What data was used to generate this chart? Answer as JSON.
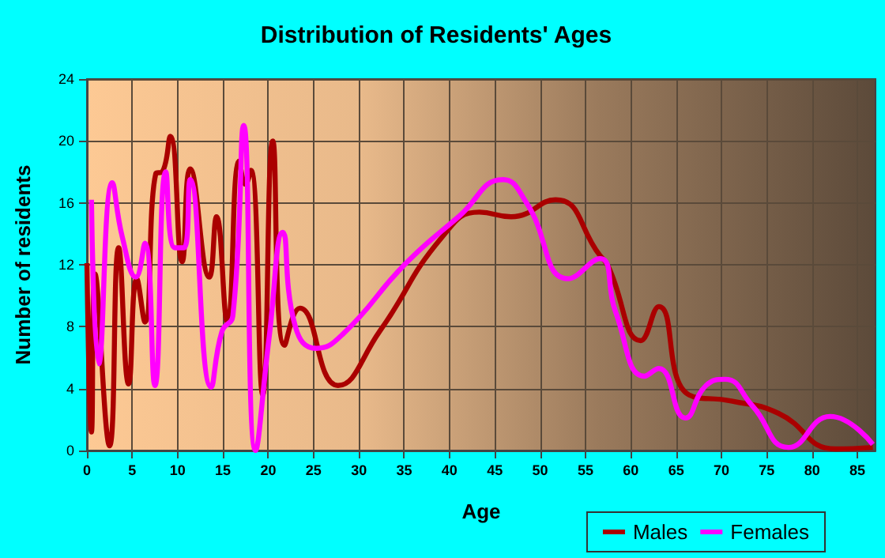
{
  "chart_data": {
    "type": "line",
    "title": "Distribution of Residents' Ages",
    "xlabel": "Age",
    "ylabel": "Number of residents",
    "series": [
      {
        "name": "Males",
        "color": "#aa0000",
        "x": [
          0,
          0.5,
          0.9,
          2.5,
          3.5,
          4.6,
          5.5,
          6.4,
          7.6,
          8.3,
          9.2,
          10.5,
          11.4,
          13.5,
          14.3,
          15.5,
          16.8,
          17.5,
          18.1,
          19.4,
          20.5,
          21.8,
          23.5,
          27.7,
          32.3,
          39.2,
          43.3,
          46.8,
          51.7,
          56.6,
          57.5,
          61.1,
          63.1,
          66.4,
          71.1,
          76.3,
          82.6,
          86.7
        ],
        "values": [
          12.1,
          1.2,
          11.4,
          0.3,
          13.1,
          4.3,
          11.1,
          8.3,
          17.9,
          18,
          20.3,
          12.2,
          18.2,
          11.2,
          15.1,
          8.3,
          18.7,
          17.2,
          18.1,
          3.6,
          20,
          6.8,
          9.2,
          4.2,
          7.7,
          13.8,
          15.4,
          15.1,
          16.2,
          12.6,
          11.9,
          7.1,
          9.3,
          3.6,
          3.2,
          2.4,
          0.1,
          0.2
        ]
      },
      {
        "name": "Females",
        "color": "#ff00ff",
        "x": [
          0.5,
          1.3,
          2.8,
          3.9,
          5.4,
          6.4,
          7.5,
          8.7,
          9.7,
          10.7,
          11.4,
          13.7,
          14.9,
          16.1,
          17.3,
          18.6,
          20.1,
          21.6,
          23,
          25.3,
          28.2,
          35.2,
          41,
          45.9,
          48.5,
          53.1,
          56.6,
          58.3,
          61.5,
          63.1,
          66,
          68.3,
          70.4,
          73.4,
          77.4,
          82,
          86.7
        ],
        "values": [
          16.2,
          5.6,
          17.3,
          13.8,
          11.2,
          13.4,
          4.2,
          18,
          13.1,
          13.1,
          17.5,
          4.1,
          7.7,
          8.7,
          21,
          0,
          7.3,
          14.1,
          8,
          6.6,
          7.5,
          12.1,
          15.1,
          17.5,
          16,
          11.1,
          12.4,
          9,
          4.8,
          5.3,
          2.1,
          4.2,
          4.6,
          2.9,
          0.2,
          2.2,
          0.4
        ]
      }
    ],
    "xlim": [
      0,
      87
    ],
    "xticks": [
      0,
      5,
      10,
      15,
      20,
      25,
      30,
      35,
      40,
      45,
      50,
      55,
      60,
      65,
      70,
      75,
      80,
      85
    ],
    "ylim": [
      0,
      24
    ],
    "yticks": [
      0,
      4,
      8,
      12,
      16,
      20,
      24
    ],
    "grid": true,
    "legend": "bottom right"
  }
}
